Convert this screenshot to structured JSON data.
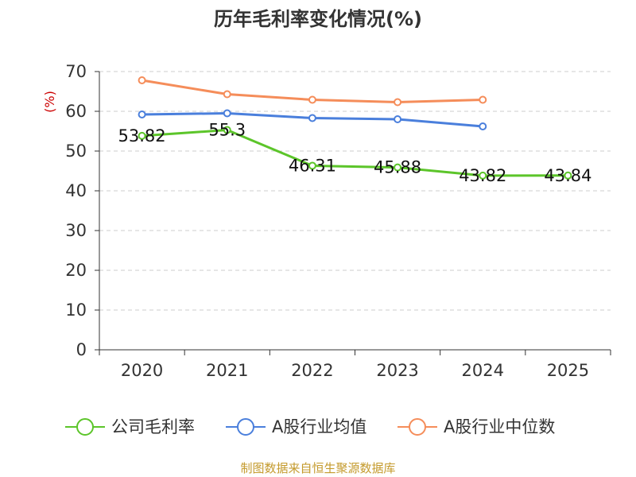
{
  "chart_data": {
    "type": "line",
    "title": "历年毛利率变化情况(%)",
    "ylabel": "(%)",
    "xlabel": "",
    "categories": [
      "2020",
      "2021",
      "2022",
      "2023",
      "2024",
      "2025"
    ],
    "ylim": [
      0,
      70
    ],
    "yticks": [
      0,
      10,
      20,
      30,
      40,
      50,
      60,
      70
    ],
    "grid": true,
    "legend_position": "bottom",
    "series": [
      {
        "name": "公司毛利率",
        "color": "#5cc52a",
        "values": [
          53.82,
          55.3,
          46.31,
          45.88,
          43.82,
          43.84
        ],
        "labels": [
          "53.82",
          "55.3",
          "46.31",
          "45.88",
          "43.82",
          "43.84"
        ]
      },
      {
        "name": "A股行业均值",
        "color": "#4a7fdc",
        "values": [
          59.2,
          59.5,
          58.3,
          58.0,
          56.2,
          null
        ]
      },
      {
        "name": "A股行业中位数",
        "color": "#f58d5a",
        "values": [
          67.8,
          64.3,
          62.9,
          62.3,
          62.9,
          null
        ]
      }
    ],
    "source": "制图数据来自恒生聚源数据库",
    "colors": {
      "title": "#333333",
      "ylabel": "#cc0000",
      "source": "#c49a2c",
      "grid": "#cccccc",
      "axis": "#333333"
    }
  }
}
